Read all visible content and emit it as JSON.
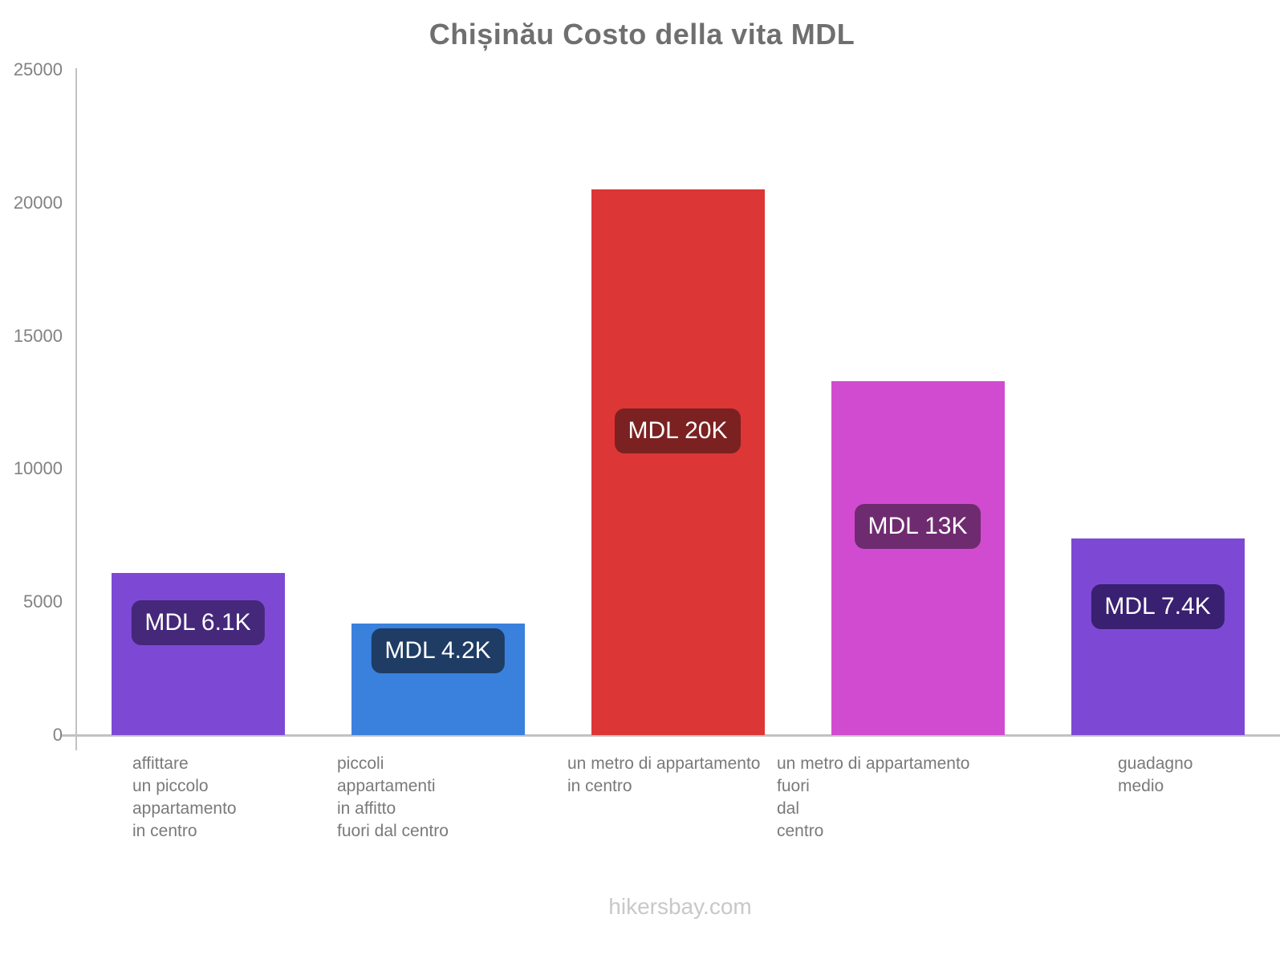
{
  "title": "Chișinău Costo della vita MDL",
  "footer": "hikersbay.com",
  "chart_data": {
    "type": "bar",
    "title": "Chișinău Costo della vita MDL",
    "currency": "MDL",
    "categories": [
      "affittare un piccolo appartamento in centro",
      "piccoli appartamenti in affitto fuori dal centro",
      "un metro di appartamento in centro",
      "un metro di appartamento fuori dal centro",
      "guadagno medio"
    ],
    "category_label_lines": [
      [
        "affittare",
        "un piccolo",
        "appartamento",
        "in centro"
      ],
      [
        "piccoli",
        "appartamenti",
        "in affitto",
        "fuori dal centro"
      ],
      [
        "un metro di appartamento",
        "in centro"
      ],
      [
        "un metro di appartamento",
        "fuori",
        "dal",
        "centro"
      ],
      [
        "guadagno",
        "medio"
      ]
    ],
    "values": [
      6100,
      4200,
      20500,
      13300,
      7400
    ],
    "value_labels": [
      "MDL 6.1K",
      "MDL 4.2K",
      "MDL 20K",
      "MDL 13K",
      "MDL 7.4K"
    ],
    "bar_colors": [
      "#7d49d4",
      "#3a81dd",
      "#dd3636",
      "#d04bd0",
      "#7d49d4"
    ],
    "value_label_bg": [
      "#45287a",
      "#1e3c64",
      "#7b2121",
      "#6f2b70",
      "#392071"
    ],
    "y_ticks": [
      0,
      5000,
      10000,
      15000,
      20000,
      25000
    ],
    "ylim": [
      0,
      25000
    ],
    "xlabel": "",
    "ylabel": "",
    "grid": false,
    "legend": false
  }
}
